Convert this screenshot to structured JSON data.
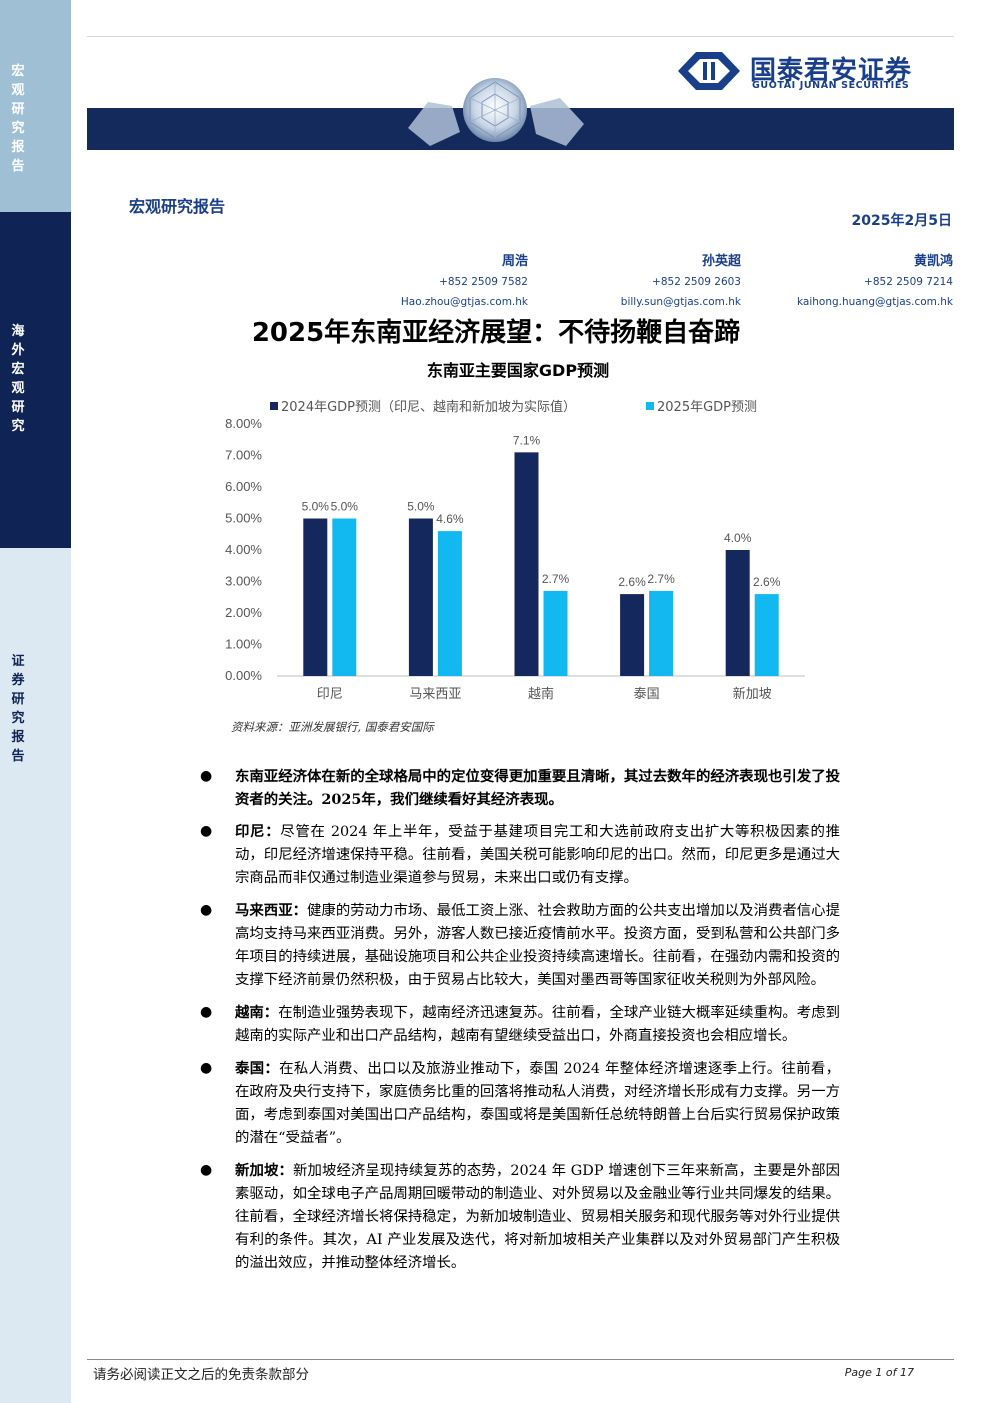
{
  "sidebar": {
    "segments": [
      {
        "text": "宏观研究报告",
        "color": "#ffffff"
      },
      {
        "text": "海外宏观研究",
        "color": "#ffffff"
      },
      {
        "text": "证券研究报告",
        "color": "#0f2454"
      }
    ]
  },
  "header": {
    "logo_cn": "国泰君安证券",
    "logo_en": "GUOTAI JUNAN SECURITIES",
    "report_type": "宏观研究报告",
    "date": "2025年2月5日"
  },
  "authors": [
    {
      "name": "周浩",
      "phone": "+852 2509 7582",
      "email": "Hao.zhou@gtjas.com.hk"
    },
    {
      "name": "孙英超",
      "phone": "+852 2509 2603",
      "email": "billy.sun@gtjas.com.hk"
    },
    {
      "name": "黄凯鸿",
      "phone": "+852 2509 7214",
      "email": "kaihong.huang@gtjas.com.hk"
    }
  ],
  "title": "2025年东南亚经济展望：不待扬鞭自奋蹄",
  "chart_title": "东南亚主要国家GDP预测",
  "chart_data": {
    "type": "bar",
    "title": "东南亚主要国家GDP预测",
    "categories": [
      "印尼",
      "马来西亚",
      "越南",
      "泰国",
      "新加坡"
    ],
    "series": [
      {
        "name": "2024年GDP预测（印尼、越南和新加坡为实际值）",
        "color": "#14285e",
        "values": [
          5.0,
          5.0,
          7.1,
          2.6,
          4.0
        ],
        "labels": [
          "5.0%",
          "5.0%",
          "7.1%",
          "2.6%",
          "4.0%"
        ]
      },
      {
        "name": "2025年GDP预测",
        "color": "#12b8f0",
        "values": [
          5.0,
          4.6,
          2.7,
          2.7,
          2.6
        ],
        "labels": [
          "5.0%",
          "4.6%",
          "2.7%",
          "2.7%",
          "2.6%"
        ]
      }
    ],
    "ylim": [
      0,
      8
    ],
    "yticks": [
      "0.00%",
      "1.00%",
      "2.00%",
      "3.00%",
      "4.00%",
      "5.00%",
      "6.00%",
      "7.00%",
      "8.00%"
    ],
    "legend": "top",
    "grid": false
  },
  "source": "资料来源：亚洲发展银行, 国泰君安国际",
  "bullets": [
    {
      "label": "",
      "text": "东南亚经济体在新的全球格局中的定位变得更加重要且清晰，其过去数年的经济表现也引发了投资者的关注。2025年，我们继续看好其经济表现。"
    },
    {
      "label": "印尼：",
      "text": "尽管在 2024 年上半年，受益于基建项目完工和大选前政府支出扩大等积极因素的推动，印尼经济增速保持平稳。往前看，美国关税可能影响印尼的出口。然而，印尼更多是通过大宗商品而非仅通过制造业渠道参与贸易，未来出口或仍有支撑。"
    },
    {
      "label": "马来西亚：",
      "text": "健康的劳动力市场、最低工资上涨、社会救助方面的公共支出增加以及消费者信心提高均支持马来西亚消费。另外，游客人数已接近疫情前水平。投资方面，受到私营和公共部门多年项目的持续进展，基础设施项目和公共企业投资持续高速增长。往前看，在强劲内需和投资的支撑下经济前景仍然积极，由于贸易占比较大，美国对墨西哥等国家征收关税则为外部风险。"
    },
    {
      "label": "越南：",
      "text": "在制造业强势表现下，越南经济迅速复苏。往前看，全球产业链大概率延续重构。考虑到越南的实际产业和出口产品结构，越南有望继续受益出口，外商直接投资也会相应增长。"
    },
    {
      "label": "泰国：",
      "text": "在私人消费、出口以及旅游业推动下，泰国 2024 年整体经济增速逐季上行。往前看，在政府及央行支持下，家庭债务比重的回落将推动私人消费，对经济增长形成有力支撑。另一方面，考虑到泰国对美国出口产品结构，泰国或将是美国新任总统特朗普上台后实行贸易保护政策的潜在“受益者”。"
    },
    {
      "label": "新加坡：",
      "text": "新加坡经济呈现持续复苏的态势，2024 年 GDP 增速创下三年来新高，主要是外部因素驱动，如全球电子产品周期回暖带动的制造业、对外贸易以及金融业等行业共同爆发的结果。往前看，全球经济增长将保持稳定，为新加坡制造业、贸易相关服务和现代服务等对外行业提供有利的条件。其次，AI 产业发展及迭代，将对新加坡相关产业集群以及对外贸易部门产生积极的溢出效应，并推动整体经济增长。"
    }
  ],
  "footer": {
    "disclaimer": "请务必阅读正文之后的免责条款部分",
    "page": "Page 1 of 17"
  }
}
